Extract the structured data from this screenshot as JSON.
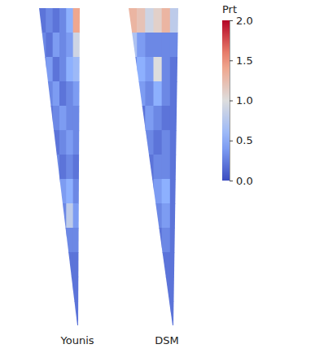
{
  "chart_data": {
    "type": "heatmap",
    "panels": [
      {
        "label": "Younis",
        "cells": [
          [
            0.2,
            0.3,
            0.2,
            0.3,
            0.5,
            1.4
          ],
          [
            0.3,
            0.2,
            0.4,
            0.3,
            0.4,
            0.9
          ],
          [
            0.2,
            0.4,
            0.2,
            0.3,
            0.5,
            0.6
          ],
          [
            0.2,
            0.3,
            0.4,
            0.2,
            0.3,
            0.4
          ],
          [
            0.2,
            0.2,
            0.3,
            0.4,
            0.3,
            0.3
          ],
          [
            0.2,
            0.2,
            0.2,
            0.3,
            0.4,
            0.3
          ],
          [
            0.2,
            0.2,
            0.3,
            0.2,
            0.3,
            0.2
          ],
          [
            0.2,
            0.2,
            0.2,
            0.4,
            0.5,
            0.3
          ],
          [
            0.2,
            0.2,
            0.2,
            0.3,
            0.8,
            0.4
          ],
          [
            0.2,
            0.2,
            0.2,
            0.2,
            0.3,
            0.3
          ],
          [
            0.2,
            0.2,
            0.2,
            0.2,
            0.2,
            0.2
          ],
          [
            0.2,
            0.2,
            0.2,
            0.2,
            0.2,
            0.2
          ],
          [
            0.2,
            0.2,
            0.2,
            0.2,
            0.2,
            0.2
          ]
        ]
      },
      {
        "label": "DSM",
        "cells": [
          [
            1.3,
            1.2,
            0.9,
            1.1,
            1.3,
            0.8
          ],
          [
            0.7,
            0.4,
            0.3,
            0.3,
            0.3,
            0.3
          ],
          [
            0.3,
            0.5,
            0.4,
            1.0,
            0.3,
            0.2
          ],
          [
            0.2,
            0.4,
            0.3,
            0.5,
            0.3,
            0.2
          ],
          [
            0.2,
            0.2,
            0.4,
            0.3,
            0.2,
            0.2
          ],
          [
            0.2,
            0.2,
            0.3,
            0.2,
            0.3,
            0.2
          ],
          [
            0.2,
            0.2,
            0.2,
            0.3,
            0.3,
            0.2
          ],
          [
            0.2,
            0.2,
            0.2,
            0.4,
            0.5,
            0.2
          ],
          [
            0.2,
            0.2,
            0.2,
            0.3,
            0.4,
            0.2
          ],
          [
            0.2,
            0.2,
            0.2,
            0.2,
            0.3,
            0.2
          ],
          [
            0.2,
            0.2,
            0.2,
            0.2,
            0.2,
            0.2
          ],
          [
            0.2,
            0.2,
            0.2,
            0.2,
            0.2,
            0.2
          ],
          [
            0.2,
            0.2,
            0.2,
            0.2,
            0.2,
            0.2
          ]
        ]
      }
    ],
    "colorbar": {
      "title": "Prt",
      "range": [
        0,
        2
      ],
      "ticks": [
        {
          "value": 0,
          "label": "0.0"
        },
        0.5,
        {
          "value": 1,
          "label": "1.0"
        },
        1.5,
        {
          "value": 2,
          "label": "2.0"
        }
      ]
    }
  }
}
